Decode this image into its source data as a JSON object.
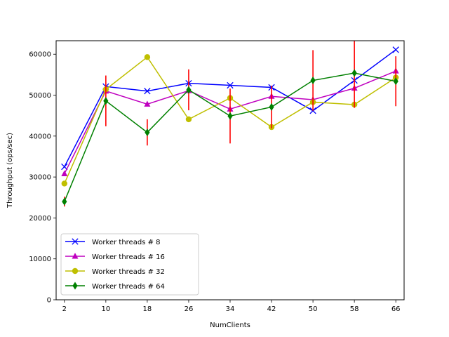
{
  "chart_data": {
    "type": "line",
    "title": "",
    "xlabel": "NumClients",
    "ylabel": "Throughput (ops/sec)",
    "x": [
      2,
      10,
      18,
      26,
      34,
      42,
      50,
      58,
      66
    ],
    "x_ticks": [
      "2",
      "10",
      "18",
      "26",
      "34",
      "42",
      "50",
      "58",
      "66"
    ],
    "y_ticks": [
      "0",
      "10000",
      "20000",
      "30000",
      "40000",
      "50000",
      "60000"
    ],
    "xlim": [
      0.4,
      67.6
    ],
    "ylim": [
      0,
      63300
    ],
    "grid": false,
    "legend_position": "lower-left",
    "error_bar_color": "#ff0000",
    "series": [
      {
        "name": "Worker threads # 8",
        "color": "#0000ff",
        "marker": "x",
        "values": [
          32500,
          52100,
          51000,
          52900,
          52400,
          51900,
          46200,
          53600,
          61100
        ]
      },
      {
        "name": "Worker threads # 16",
        "color": "#bf00bf",
        "marker": "triangle-up",
        "values": [
          30800,
          51000,
          47800,
          51100,
          46600,
          49700,
          48900,
          51700,
          55900
        ]
      },
      {
        "name": "Worker threads # 32",
        "color": "#bfbf00",
        "marker": "circle",
        "values": [
          28400,
          51400,
          59300,
          44100,
          49300,
          42200,
          48300,
          47700,
          54300
        ]
      },
      {
        "name": "Worker threads # 64",
        "color": "#008000",
        "marker": "diamond",
        "values": [
          24000,
          48600,
          40900,
          51300,
          44900,
          47100,
          53600,
          55400,
          53400
        ],
        "errors": [
          1200,
          6200,
          3200,
          5000,
          6700,
          5200,
          7400,
          8500,
          6100
        ]
      }
    ]
  }
}
